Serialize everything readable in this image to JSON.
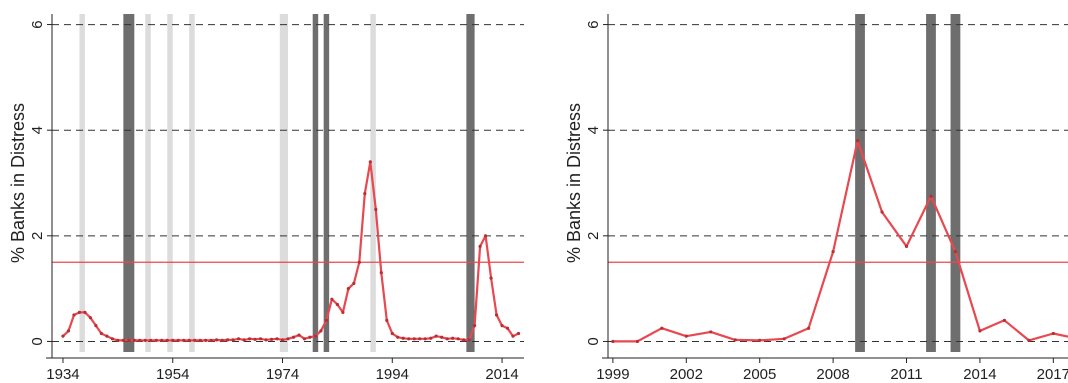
{
  "chart_data": [
    {
      "type": "line",
      "ylabel": "% Banks in Distress",
      "xlabel": "",
      "xlim": [
        1932,
        2018
      ],
      "ylim": [
        -0.2,
        6.2
      ],
      "xticks": [
        1934,
        1954,
        1974,
        1994,
        2014
      ],
      "xtick_labels": [
        "1934",
        "1954",
        "1974",
        "1994",
        "2014"
      ],
      "yticks": [
        0,
        2,
        4,
        6
      ],
      "ytick_labels": [
        "0",
        "2",
        "4",
        "6"
      ],
      "grid": "dashed horizontal",
      "threshold": 1.5,
      "light_bands": [
        [
          1937,
          1938
        ],
        [
          1949,
          1950
        ],
        [
          1953,
          1954
        ],
        [
          1957,
          1958
        ],
        [
          1973.5,
          1975
        ],
        [
          1990,
          1991
        ]
      ],
      "dark_bands": [
        [
          1945,
          1947
        ],
        [
          1979.5,
          1980.5
        ],
        [
          1981.5,
          1982.5
        ],
        [
          2007.5,
          2009
        ]
      ],
      "colors": {
        "line": "#e8484f",
        "threshold": "#e8484f",
        "dark_band": "#6e6e6e",
        "light_band": "#dcdcdc"
      },
      "series": [
        {
          "x": [
            1934,
            1935,
            1936,
            1937,
            1938,
            1939,
            1940,
            1941,
            1942,
            1943,
            1944,
            1945,
            1946,
            1947,
            1948,
            1949,
            1950,
            1951,
            1952,
            1953,
            1954,
            1955,
            1956,
            1957,
            1958,
            1959,
            1960,
            1961,
            1962,
            1963,
            1964,
            1965,
            1966,
            1967,
            1968,
            1969,
            1970,
            1971,
            1972,
            1973,
            1974,
            1975,
            1976,
            1977,
            1978,
            1979,
            1980,
            1981,
            1982,
            1983,
            1984,
            1985,
            1986,
            1987,
            1988,
            1989,
            1990,
            1991,
            1992,
            1993,
            1994,
            1995,
            1996,
            1997,
            1998,
            1999,
            2000,
            2001,
            2002,
            2003,
            2004,
            2005,
            2006,
            2007,
            2008,
            2009,
            2010,
            2011,
            2012,
            2013,
            2014,
            2015,
            2016,
            2017
          ],
          "y": [
            0.1,
            0.2,
            0.5,
            0.55,
            0.55,
            0.45,
            0.3,
            0.15,
            0.1,
            0.05,
            0.02,
            0.02,
            0.02,
            0.02,
            0.02,
            0.02,
            0.02,
            0.02,
            0.02,
            0.02,
            0.02,
            0.02,
            0.02,
            0.02,
            0.02,
            0.02,
            0.02,
            0.02,
            0.03,
            0.02,
            0.03,
            0.03,
            0.05,
            0.03,
            0.05,
            0.04,
            0.05,
            0.03,
            0.04,
            0.05,
            0.03,
            0.05,
            0.08,
            0.12,
            0.05,
            0.08,
            0.1,
            0.2,
            0.4,
            0.8,
            0.7,
            0.55,
            1.0,
            1.1,
            1.5,
            2.8,
            3.4,
            2.5,
            1.3,
            0.4,
            0.15,
            0.08,
            0.06,
            0.05,
            0.05,
            0.05,
            0.05,
            0.06,
            0.1,
            0.08,
            0.05,
            0.06,
            0.05,
            0.03,
            0.03,
            0.3,
            1.8,
            2.0,
            1.2,
            0.5,
            0.3,
            0.25,
            0.1,
            0.15
          ]
        }
      ]
    },
    {
      "type": "line",
      "ylabel": "% Banks in Distress",
      "xlabel": "",
      "xlim": [
        1998.8,
        2017.6
      ],
      "ylim": [
        -0.2,
        6.2
      ],
      "xticks": [
        1999,
        2002,
        2005,
        2008,
        2011,
        2014,
        2017
      ],
      "xtick_labels": [
        "1999",
        "2002",
        "2005",
        "2008",
        "2011",
        "2014",
        "2017"
      ],
      "yticks": [
        0,
        2,
        4,
        6
      ],
      "ytick_labels": [
        "0",
        "2",
        "4",
        "6"
      ],
      "grid": "dashed horizontal",
      "threshold": 1.5,
      "light_bands": [],
      "dark_bands": [
        [
          2008.9,
          2009.3
        ],
        [
          2011.8,
          2012.2
        ],
        [
          2012.8,
          2013.2
        ]
      ],
      "colors": {
        "line": "#e8484f",
        "threshold": "#e8484f",
        "dark_band": "#6e6e6e",
        "light_band": "#dcdcdc"
      },
      "series": [
        {
          "x": [
            1999,
            2000,
            2001,
            2002,
            2003,
            2004,
            2005,
            2006,
            2007,
            2008,
            2009,
            2010,
            2011,
            2012,
            2013,
            2014,
            2015,
            2016,
            2017,
            2018
          ],
          "y": [
            0.0,
            0.0,
            0.25,
            0.1,
            0.18,
            0.03,
            0.02,
            0.05,
            0.25,
            1.7,
            3.8,
            2.45,
            1.8,
            2.75,
            1.7,
            0.2,
            0.4,
            0.02,
            0.15,
            0.05
          ]
        }
      ]
    }
  ]
}
